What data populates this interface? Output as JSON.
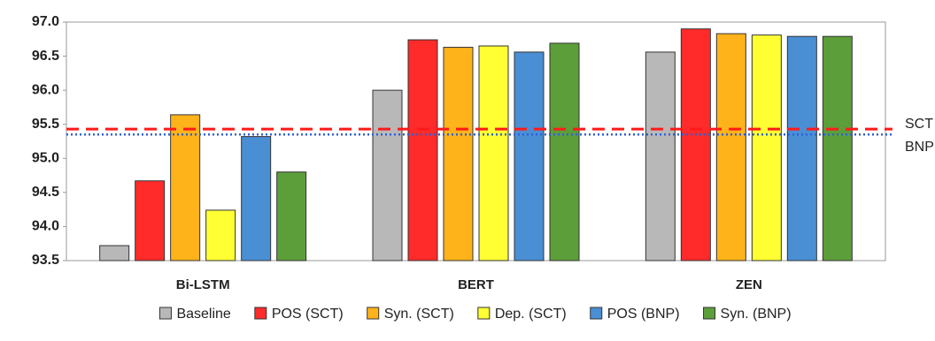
{
  "chart_data": {
    "type": "bar",
    "categories": [
      "Bi-LSTM",
      "BERT",
      "ZEN"
    ],
    "series": [
      {
        "name": "Baseline",
        "color": "#b8b8b8",
        "values": [
          93.72,
          96.0,
          96.56
        ]
      },
      {
        "name": "POS (SCT)",
        "color": "#ff2a2a",
        "values": [
          94.67,
          96.74,
          96.9
        ]
      },
      {
        "name": "Syn. (SCT)",
        "color": "#ffb31a",
        "values": [
          95.64,
          96.63,
          96.83
        ]
      },
      {
        "name": "Dep. (SCT)",
        "color": "#ffff33",
        "values": [
          94.24,
          96.65,
          96.81
        ]
      },
      {
        "name": "POS (BNP)",
        "color": "#4a8fd4",
        "values": [
          95.32,
          96.56,
          96.79
        ]
      },
      {
        "name": "Syn. (BNP)",
        "color": "#5c9e3a",
        "values": [
          94.8,
          96.69,
          96.79
        ]
      }
    ],
    "reference_lines": [
      {
        "name": "SCT",
        "value": 95.43,
        "color": "#ff1a1a",
        "style": "dashed"
      },
      {
        "name": "BNP",
        "value": 95.35,
        "color": "#2f5fd8",
        "style": "dotted"
      }
    ],
    "ylim": [
      93.5,
      97.0
    ],
    "yticks": [
      93.5,
      {
        "value": 94.0,
        "label": "94.0"
      },
      94.5,
      {
        "value": 95.0,
        "label": "95.0"
      },
      95.5,
      {
        "value": 96.0,
        "label": "96.0"
      },
      96.5,
      {
        "value": 97.0,
        "label": "97.0"
      }
    ],
    "grid": false,
    "legend": "bottom"
  }
}
